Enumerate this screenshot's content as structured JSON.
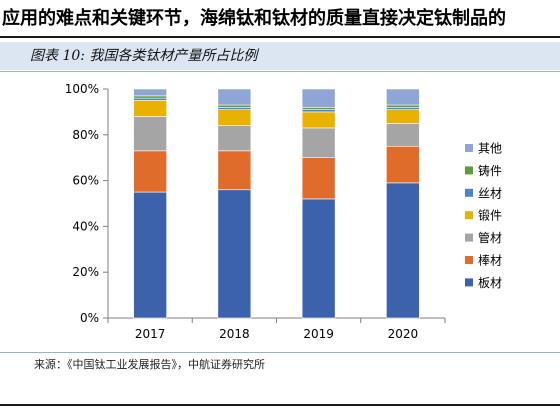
{
  "heading": "应用的难点和关键环节，海绵钛和钛材的质量直接决定钛制品的",
  "figure_caption": "图表 10: 我国各类钛材产量所占比例",
  "source": "来源：《中国钛工业发展报告》，中航证券研究所",
  "colors": {
    "板材": "#3c62ac",
    "棒材": "#e06c2c",
    "管材": "#a5a5a5",
    "锻件": "#e9b200",
    "丝材": "#4a86c6",
    "铸件": "#5e9e3a",
    "其他": "#8fa5d6"
  },
  "chart_data": {
    "type": "bar",
    "stacked": true,
    "percent": true,
    "categories": [
      "2017",
      "2018",
      "2019",
      "2020"
    ],
    "series": [
      {
        "name": "板材",
        "values": [
          55,
          56,
          52,
          59
        ]
      },
      {
        "name": "棒材",
        "values": [
          18,
          17,
          18,
          16
        ]
      },
      {
        "name": "管材",
        "values": [
          15,
          11,
          13,
          10
        ]
      },
      {
        "name": "锻件",
        "values": [
          7,
          7,
          7,
          6
        ]
      },
      {
        "name": "丝材",
        "values": [
          1,
          1,
          1,
          1
        ]
      },
      {
        "name": "铸件",
        "values": [
          1,
          1,
          1,
          1
        ]
      },
      {
        "name": "其他",
        "values": [
          3,
          7,
          8,
          7
        ]
      }
    ],
    "ylim": [
      0,
      100
    ],
    "yticks": [
      "0%",
      "20%",
      "40%",
      "60%",
      "80%",
      "100%"
    ],
    "legend_position": "right",
    "grid": false
  }
}
